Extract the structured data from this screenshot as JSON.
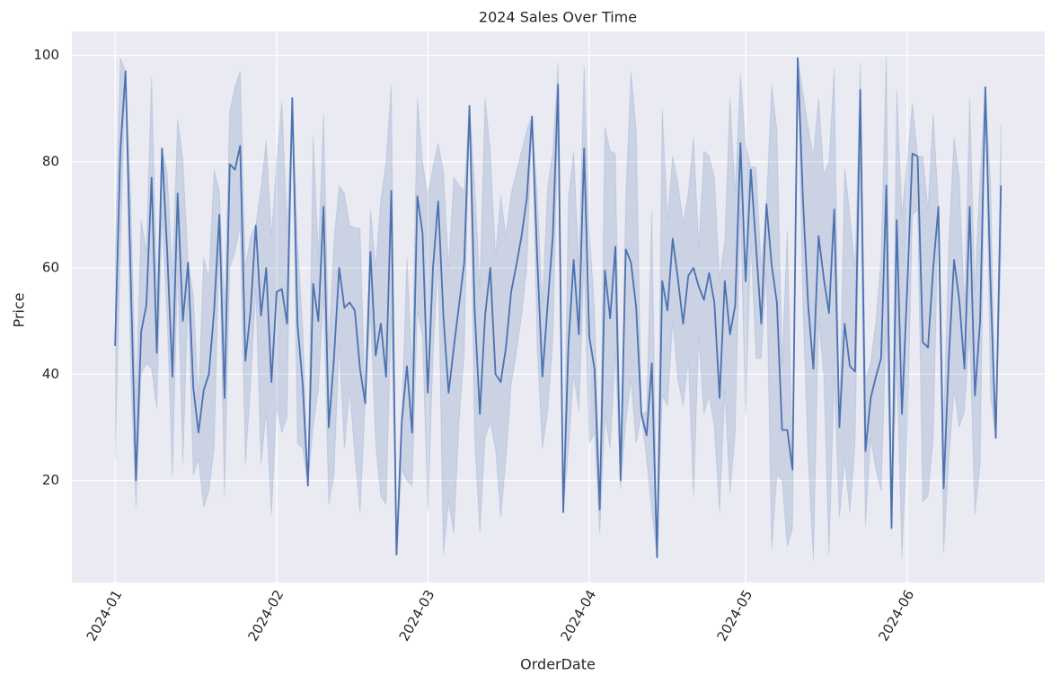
{
  "chart_data": {
    "type": "line",
    "title": "2024 Sales Over Time",
    "x_label": "OrderDate",
    "y_label": "Price",
    "x": [
      0,
      1,
      2,
      3,
      4,
      5,
      6,
      7,
      8,
      9,
      10,
      11,
      12,
      13,
      14,
      15,
      16,
      17,
      18,
      19,
      20,
      21,
      22,
      23,
      24,
      25,
      26,
      27,
      28,
      29,
      30,
      31,
      32,
      33,
      34,
      35,
      36,
      37,
      38,
      39,
      40,
      41,
      42,
      43,
      44,
      45,
      46,
      47,
      48,
      49,
      50,
      51,
      52,
      53,
      54,
      55,
      56,
      57,
      58,
      59,
      60,
      61,
      62,
      63,
      64,
      65,
      66,
      67,
      68,
      69,
      70,
      71,
      72,
      73,
      74,
      75,
      76,
      77,
      78,
      79,
      80,
      81,
      82,
      83,
      84,
      85,
      86,
      87,
      88,
      89,
      90,
      91,
      92,
      93,
      94,
      95,
      96,
      97,
      98,
      99,
      100,
      101,
      102,
      103,
      104,
      105,
      106,
      107,
      108,
      109,
      110,
      111,
      112,
      113,
      114,
      115,
      116,
      117,
      118,
      119,
      120,
      121,
      122,
      123,
      124,
      125,
      126,
      127,
      128,
      129,
      130,
      131,
      132,
      133,
      134,
      135,
      136,
      137,
      138,
      139,
      140,
      141,
      142,
      143,
      144,
      145,
      146,
      147,
      148,
      149,
      150,
      151,
      152,
      153,
      154,
      155,
      156,
      157,
      158,
      159,
      160,
      161,
      162,
      163,
      164,
      165,
      166,
      167,
      168,
      169,
      170
    ],
    "series": [
      {
        "color": "#4c72b0",
        "values": [
          45.3,
          82,
          97,
          58,
          20,
          48,
          53,
          77,
          44,
          82.5,
          63,
          39.5,
          74,
          50,
          61,
          37.5,
          29,
          37,
          40,
          52,
          70,
          35.5,
          79.5,
          78.5,
          83,
          42.5,
          52,
          68,
          51,
          60,
          38.5,
          55.5,
          56,
          49.5,
          92,
          49.5,
          38,
          19,
          57,
          50,
          71.5,
          30,
          43,
          60,
          52.5,
          53.5,
          52,
          41,
          34.5,
          63,
          43.5,
          49.5,
          39.5,
          74.5,
          6,
          31,
          41.5,
          29,
          73.5,
          66.5,
          36.5,
          60,
          72.5,
          51,
          36.5,
          45,
          53,
          61,
          90.5,
          52,
          32.5,
          51,
          60,
          40,
          38.5,
          45,
          55.5,
          60.5,
          66,
          73,
          88.5,
          62,
          39.5,
          53,
          66,
          94.5,
          14,
          45.5,
          61.5,
          47.5,
          82.5,
          47,
          41,
          14.5,
          59.5,
          50.5,
          64,
          20,
          63.5,
          61,
          52.5,
          32.5,
          28.5,
          42,
          5.5,
          57.5,
          52,
          65.5,
          58,
          49.5,
          58.5,
          60,
          56.5,
          54,
          59,
          53.5,
          35.5,
          57.5,
          47.5,
          53,
          83.5,
          57.5,
          78.5,
          64,
          49.5,
          72,
          60.5,
          53.5,
          29.5,
          29.5,
          22,
          99.5,
          73,
          53,
          41,
          66,
          58,
          51.5,
          71,
          30,
          49.5,
          41.5,
          40.5,
          93.5,
          25.5,
          35.5,
          39.5,
          43,
          75.5,
          11,
          69,
          32.5,
          56,
          81.5,
          81,
          46,
          45,
          60,
          71.5,
          18.5,
          43,
          61.5,
          54,
          41,
          71.5,
          36,
          50,
          94,
          57,
          28,
          75.5
        ],
        "ci_lower": [
          24,
          63,
          97,
          40,
          15,
          40,
          42,
          41,
          33.5,
          70,
          50,
          20.5,
          60,
          23,
          55,
          21,
          24,
          15,
          18,
          26,
          65,
          17,
          60,
          63,
          68,
          23,
          38,
          56,
          23,
          33,
          13.5,
          34,
          29,
          32,
          92,
          27,
          26,
          19,
          30,
          37,
          55,
          15.5,
          21,
          46,
          26,
          37,
          25,
          14,
          34.5,
          52,
          27,
          17,
          15.5,
          51,
          6,
          22,
          20,
          19,
          52,
          47,
          14,
          43,
          62,
          6,
          16,
          10,
          31,
          44,
          90.5,
          28,
          10,
          28,
          31,
          26,
          13,
          24,
          38,
          44,
          51,
          60,
          88.5,
          45,
          26,
          33,
          46,
          89,
          14,
          26,
          40,
          33,
          61,
          27,
          29,
          10,
          32,
          26,
          44,
          18.5,
          31,
          39,
          27,
          32.5,
          24,
          14,
          5.5,
          36,
          34,
          50,
          39,
          34,
          43,
          17,
          47,
          32.5,
          36,
          30,
          14,
          37,
          17.5,
          29,
          71,
          32,
          65,
          43,
          43,
          60,
          7,
          21,
          20,
          7.5,
          11,
          99.5,
          53,
          24,
          5,
          50,
          40,
          6,
          40,
          13,
          24,
          14,
          27,
          81,
          11.5,
          28,
          22,
          18,
          49,
          11,
          43,
          5.5,
          28,
          70,
          71,
          16,
          17,
          28,
          71.5,
          6.5,
          24,
          37,
          30,
          33,
          48,
          13.5,
          23,
          94,
          36,
          28,
          63
        ],
        "ci_upper": [
          63,
          99.5,
          97,
          73,
          35,
          69,
          63,
          96,
          55,
          82.5,
          78,
          58,
          88,
          80.5,
          61,
          55,
          35,
          62,
          58,
          78.5,
          74.5,
          52,
          89.5,
          94,
          97,
          60,
          66,
          68,
          75,
          84,
          66,
          80,
          91.5,
          67,
          92,
          65,
          49,
          19,
          85,
          62,
          89,
          45,
          65,
          75.5,
          74,
          68,
          67.5,
          67.5,
          34.5,
          71,
          60,
          73,
          80,
          94.5,
          6,
          31,
          62,
          41,
          92,
          80,
          73.5,
          79,
          83.5,
          78,
          60,
          77,
          75.5,
          74.5,
          90.5,
          76,
          56,
          92,
          82,
          62,
          73.5,
          66,
          74,
          78,
          82,
          86,
          88.5,
          74,
          53,
          75,
          82,
          98.5,
          14,
          73,
          82,
          60,
          98,
          67,
          52,
          19,
          86.5,
          82,
          81.5,
          23,
          73,
          97,
          86,
          32.5,
          33,
          71,
          5.5,
          90,
          69,
          81,
          76,
          68.5,
          74,
          84.5,
          64,
          82,
          81,
          77,
          58,
          65,
          92,
          74,
          96.5,
          83,
          79,
          79,
          60,
          72,
          94.5,
          86,
          42,
          67,
          22,
          99.5,
          93,
          86.5,
          81,
          92,
          77.5,
          80,
          97.5,
          30,
          79,
          70,
          60,
          98.5,
          39,
          42,
          50,
          62,
          100,
          11,
          93.5,
          70,
          80,
          91,
          81,
          81,
          71,
          89,
          71.5,
          30,
          65,
          84.5,
          77,
          52,
          92,
          56,
          77,
          94,
          76,
          28,
          87
        ]
      }
    ],
    "xlim": [
      -8.3,
      178.4
    ],
    "xticks": [
      {
        "value": 0,
        "label": "2024-01"
      },
      {
        "value": 31,
        "label": "2024-02"
      },
      {
        "value": 60,
        "label": "2024-03"
      },
      {
        "value": 91,
        "label": "2024-04"
      },
      {
        "value": 121,
        "label": "2024-05"
      },
      {
        "value": 152,
        "label": "2024-06"
      }
    ],
    "ylim": [
      0.8,
      104.5
    ],
    "yticks": [
      20,
      40,
      60,
      80,
      100
    ],
    "grid": true
  }
}
